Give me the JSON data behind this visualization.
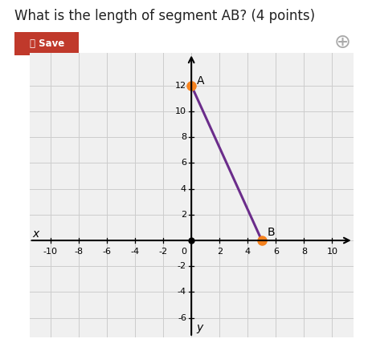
{
  "title": "What is the length of segment AB? (4 points)",
  "title_fontsize": 12,
  "point_A": [
    0,
    12
  ],
  "point_B": [
    5,
    0
  ],
  "point_color": "#F5821E",
  "line_color": "#6B2D8B",
  "line_width": 2.2,
  "xlim": [
    -11.5,
    11.5
  ],
  "ylim": [
    -7.5,
    14.5
  ],
  "xticks": [
    -10,
    -8,
    -6,
    -4,
    -2,
    0,
    2,
    4,
    6,
    8,
    10
  ],
  "yticks": [
    -6,
    -4,
    -2,
    0,
    2,
    4,
    6,
    8,
    10,
    12
  ],
  "xlabel": "x",
  "ylabel": "y",
  "label_A": "A",
  "label_B": "B",
  "grid_color": "#cccccc",
  "bg_color": "#ffffff",
  "plot_bg_color": "#f0f0f0",
  "save_button_color": "#c0392b",
  "save_text": "Ⓟ Save",
  "origin_dot_color": "#000000",
  "tick_fontsize": 8,
  "label_fontsize": 10
}
